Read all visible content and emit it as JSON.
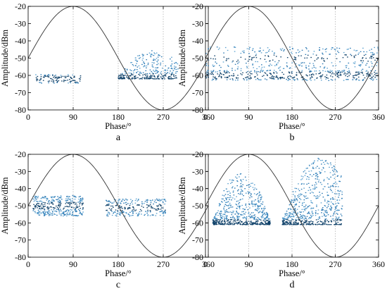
{
  "figure": {
    "panels": [
      "a",
      "b",
      "c",
      "d"
    ]
  },
  "chart_data": [
    {
      "type": "scatter",
      "panel_label": "a",
      "xlabel": "Phase/°",
      "ylabel": "Amplitude/dBm",
      "xlim": [
        0,
        360
      ],
      "ylim": [
        -80,
        -20
      ],
      "xticks": [
        0,
        90,
        180,
        270,
        360
      ],
      "yticks": [
        -20,
        -30,
        -40,
        -50,
        -60,
        -70,
        -80
      ],
      "grid": "dotted vertical lines at 90, 180, 270",
      "reference_curve": {
        "shape": "sinusoid",
        "offset": -50,
        "amplitude": 30,
        "peak_at": 90
      },
      "point_color": "#1f5f8f",
      "clusters": [
        {
          "x_range": [
            15,
            105
          ],
          "y_center": -62,
          "y_spread_up": 4,
          "y_spread_down": 1,
          "count": 110,
          "shape": "band"
        },
        {
          "x_range": [
            180,
            300
          ],
          "y_center": -61,
          "y_spread_up": 16,
          "y_spread_down": 1,
          "count": 330,
          "shape": "dome",
          "peak_x": 250
        }
      ]
    },
    {
      "type": "scatter",
      "panel_label": "b",
      "xlabel": "Phase/°",
      "ylabel": "Amplitude/dBm",
      "xlim": [
        0,
        360
      ],
      "ylim": [
        -80,
        -20
      ],
      "xticks": [
        0,
        90,
        180,
        270,
        360
      ],
      "yticks": [
        -20,
        -30,
        -40,
        -50,
        -60,
        -70,
        -80
      ],
      "grid": "dotted vertical lines at 90, 180, 270",
      "reference_curve": {
        "shape": "sinusoid",
        "offset": -50,
        "amplitude": 30,
        "peak_at": 90
      },
      "point_color": "#1f5f8f",
      "clusters": [
        {
          "x_range": [
            0,
            360
          ],
          "y_center": -60,
          "y_spread_up": 3,
          "y_spread_down": 3,
          "count": 400,
          "shape": "band"
        },
        {
          "x_range": [
            0,
            360
          ],
          "y_center": -50,
          "y_spread_up": 6,
          "y_spread_down": 7,
          "count": 320,
          "shape": "band"
        }
      ]
    },
    {
      "type": "scatter",
      "panel_label": "c",
      "xlabel": "Phase/°",
      "ylabel": "Amplitude/dBm",
      "xlim": [
        0,
        360
      ],
      "ylim": [
        -80,
        -20
      ],
      "xticks": [
        0,
        90,
        180,
        270,
        360
      ],
      "yticks": [
        -20,
        -30,
        -40,
        -50,
        -60,
        -70,
        -80
      ],
      "grid": "dotted vertical lines at 90, 180, 270",
      "reference_curve": {
        "shape": "sinusoid",
        "offset": -50,
        "amplitude": 30,
        "peak_at": 90
      },
      "point_color": "#1f5f8f",
      "clusters": [
        {
          "x_range": [
            10,
            110
          ],
          "y_center": -50,
          "y_spread_up": 7,
          "y_spread_down": 5,
          "count": 360,
          "shape": "band"
        },
        {
          "x_range": [
            155,
            275
          ],
          "y_center": -51,
          "y_spread_up": 5,
          "y_spread_down": 5,
          "count": 260,
          "shape": "band"
        }
      ]
    },
    {
      "type": "scatter",
      "panel_label": "d",
      "xlabel": "Phase/°",
      "ylabel": "Amplitude/dBm",
      "xlim": [
        0,
        360
      ],
      "ylim": [
        -80,
        -20
      ],
      "xticks": [
        0,
        90,
        180,
        270,
        360
      ],
      "yticks": [
        -20,
        -30,
        -40,
        -50,
        -60,
        -70,
        -80
      ],
      "grid": "dotted vertical lines at 90, 180, 270",
      "reference_curve": {
        "shape": "sinusoid",
        "offset": -50,
        "amplitude": 30,
        "peak_at": 90
      },
      "point_color": "#1f5f8f",
      "clusters": [
        {
          "x_range": [
            15,
            135
          ],
          "y_center": -60,
          "y_spread_up": 30,
          "y_spread_down": 1,
          "count": 650,
          "shape": "dome",
          "peak_x": 75
        },
        {
          "x_range": [
            160,
            285
          ],
          "y_center": -60,
          "y_spread_up": 38,
          "y_spread_down": 1,
          "count": 650,
          "shape": "dome",
          "peak_x": 240
        }
      ]
    }
  ]
}
